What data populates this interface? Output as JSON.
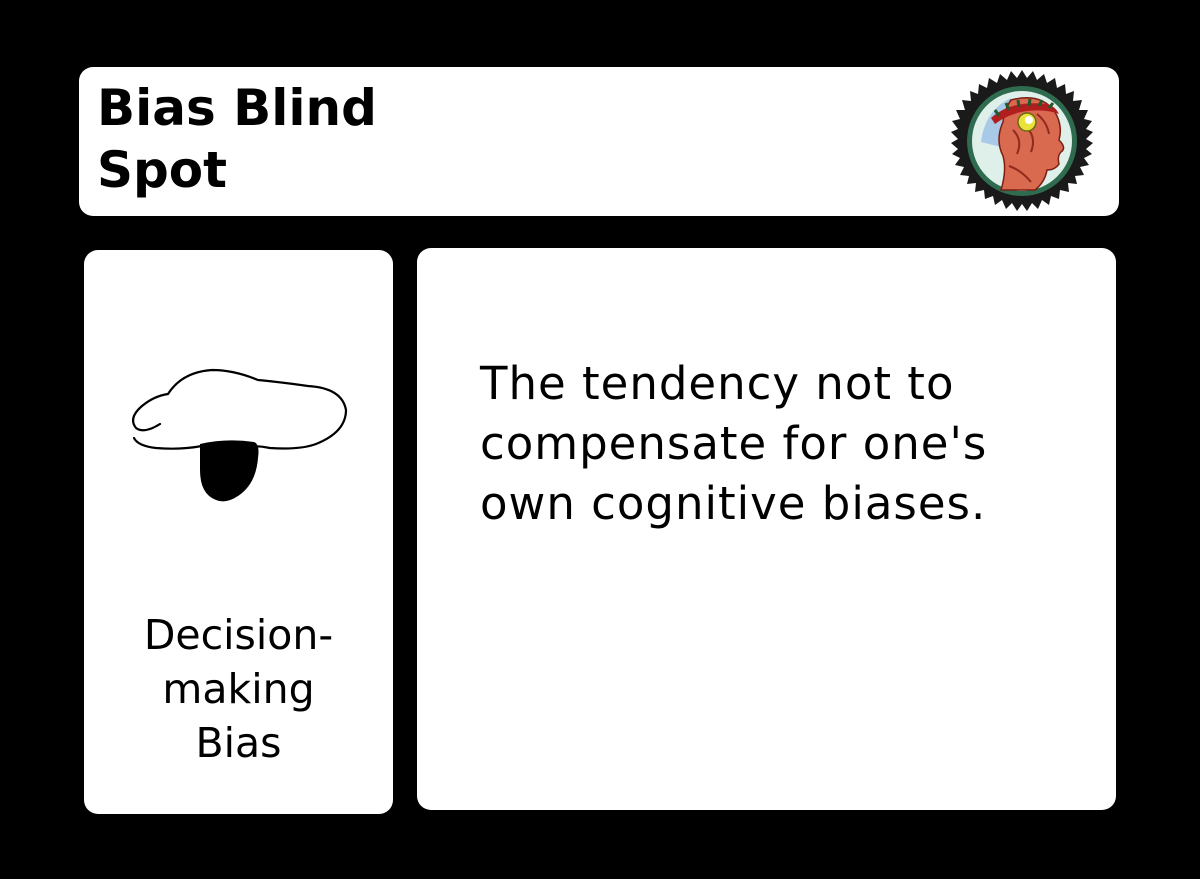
{
  "title": {
    "line1": "Bias Blind",
    "line2": "Spot"
  },
  "emblem": {
    "icon": "laurel-head-emblem-icon",
    "colors": {
      "rim": "#1a1a1a",
      "inner": "#2f6b4f",
      "face": "#d9694f",
      "laurel": "#b01e1e",
      "eye": "#e8e23a",
      "sky": "#a9c9e8"
    }
  },
  "category": {
    "icon": "eyepatch-icon",
    "line1": "Decision-",
    "line2": "making",
    "line3": "Bias"
  },
  "description": {
    "text": "The tendency not to compensate for one's own cognitive biases."
  },
  "colors": {
    "background": "#000000",
    "card": "#ffffff",
    "text": "#000000"
  }
}
